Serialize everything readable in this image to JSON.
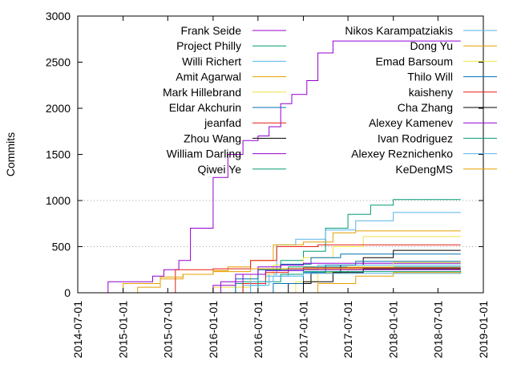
{
  "chart_data": {
    "type": "line",
    "title": "",
    "xlabel": "",
    "ylabel": "Commits",
    "xlim": [
      "2014-07-01",
      "2019-01-01"
    ],
    "ylim": [
      0,
      3000
    ],
    "x_ticks": [
      "2014-07-01",
      "2015-01-01",
      "2015-07-01",
      "2016-01-01",
      "2016-07-01",
      "2017-01-01",
      "2017-07-01",
      "2018-01-01",
      "2018-07-01",
      "2019-01-01"
    ],
    "y_ticks": [
      0,
      500,
      1000,
      1500,
      2000,
      2500,
      3000
    ],
    "grid": "horizontal dotted at 500 and 1000",
    "legend_placement": "top, two columns",
    "series": [
      {
        "name": "Frank Seide",
        "color": "#9400d3",
        "points": [
          [
            "2014-10-15",
            0
          ],
          [
            "2014-11-01",
            120
          ],
          [
            "2015-04-01",
            120
          ],
          [
            "2015-05-01",
            180
          ],
          [
            "2015-06-15",
            250
          ],
          [
            "2015-08-15",
            350
          ],
          [
            "2015-10-01",
            700
          ],
          [
            "2016-01-01",
            1250
          ],
          [
            "2016-03-01",
            1500
          ],
          [
            "2016-05-01",
            1650
          ],
          [
            "2016-07-01",
            1700
          ],
          [
            "2016-08-15",
            1800
          ],
          [
            "2016-10-01",
            2050
          ],
          [
            "2016-11-15",
            2150
          ],
          [
            "2017-01-15",
            2300
          ],
          [
            "2017-03-01",
            2600
          ],
          [
            "2017-05-01",
            2730
          ],
          [
            "2018-10-01",
            2730
          ]
        ]
      },
      {
        "name": "Project Philly",
        "color": "#009e73",
        "points": [
          [
            "2016-01-01",
            0
          ],
          [
            "2016-04-01",
            100
          ],
          [
            "2016-07-01",
            250
          ],
          [
            "2016-10-01",
            350
          ],
          [
            "2017-01-01",
            450
          ],
          [
            "2017-04-01",
            700
          ],
          [
            "2017-07-01",
            850
          ],
          [
            "2017-10-01",
            950
          ],
          [
            "2018-01-01",
            1010
          ],
          [
            "2018-10-01",
            1010
          ]
        ]
      },
      {
        "name": "Willi Richert",
        "color": "#56b4e9",
        "points": [
          [
            "2016-03-01",
            0
          ],
          [
            "2016-06-01",
            80
          ],
          [
            "2016-08-15",
            200
          ],
          [
            "2016-09-15",
            520
          ],
          [
            "2016-12-01",
            580
          ],
          [
            "2017-04-01",
            680
          ],
          [
            "2017-08-01",
            780
          ],
          [
            "2018-01-01",
            870
          ],
          [
            "2018-10-01",
            870
          ]
        ]
      },
      {
        "name": "Amit Agarwal",
        "color": "#e69f00",
        "points": [
          [
            "2014-12-01",
            0
          ],
          [
            "2015-03-01",
            60
          ],
          [
            "2015-06-01",
            150
          ],
          [
            "2015-09-01",
            200
          ],
          [
            "2016-01-01",
            240
          ],
          [
            "2016-03-01",
            280
          ],
          [
            "2016-06-01",
            350
          ],
          [
            "2016-09-01",
            520
          ],
          [
            "2017-01-01",
            550
          ],
          [
            "2017-05-01",
            650
          ],
          [
            "2017-08-01",
            670
          ],
          [
            "2018-10-01",
            670
          ]
        ]
      },
      {
        "name": "Mark Hillebrand",
        "color": "#f0e442",
        "points": [
          [
            "2015-07-01",
            0
          ],
          [
            "2016-01-01",
            60
          ],
          [
            "2016-06-01",
            200
          ],
          [
            "2016-09-01",
            300
          ],
          [
            "2017-01-01",
            380
          ],
          [
            "2017-05-01",
            500
          ],
          [
            "2017-09-01",
            610
          ],
          [
            "2018-10-01",
            610
          ]
        ]
      },
      {
        "name": "Eldar Akchurin",
        "color": "#0072b2",
        "points": [
          [
            "2016-01-01",
            0
          ],
          [
            "2016-04-01",
            150
          ],
          [
            "2016-07-01",
            250
          ],
          [
            "2016-10-01",
            310
          ],
          [
            "2017-02-01",
            380
          ],
          [
            "2017-06-01",
            420
          ],
          [
            "2018-10-01",
            420
          ]
        ]
      },
      {
        "name": "jeanfad",
        "color": "#e51e10",
        "points": [
          [
            "2015-06-01",
            0
          ],
          [
            "2015-08-01",
            250
          ],
          [
            "2016-01-01",
            260
          ],
          [
            "2016-06-01",
            350
          ],
          [
            "2016-09-15",
            500
          ],
          [
            "2017-03-01",
            520
          ],
          [
            "2018-10-01",
            520
          ]
        ]
      },
      {
        "name": "Zhou Wang",
        "color": "#000000",
        "points": [
          [
            "2016-08-01",
            0
          ],
          [
            "2016-11-01",
            100
          ],
          [
            "2017-02-01",
            220
          ],
          [
            "2017-06-01",
            300
          ],
          [
            "2017-09-01",
            380
          ],
          [
            "2018-01-01",
            460
          ],
          [
            "2018-10-01",
            460
          ]
        ]
      },
      {
        "name": "William Darling",
        "color": "#9400d3",
        "points": [
          [
            "2015-08-01",
            0
          ],
          [
            "2016-01-01",
            80
          ],
          [
            "2016-04-01",
            200
          ],
          [
            "2016-07-01",
            280
          ],
          [
            "2016-10-01",
            300
          ],
          [
            "2017-01-01",
            320
          ],
          [
            "2018-10-01",
            320
          ]
        ]
      },
      {
        "name": "Qiwei Ye",
        "color": "#009e73",
        "points": [
          [
            "2016-02-01",
            0
          ],
          [
            "2016-05-01",
            120
          ],
          [
            "2016-08-01",
            250
          ],
          [
            "2016-11-01",
            280
          ],
          [
            "2018-10-01",
            280
          ]
        ]
      },
      {
        "name": "Nikos Karampatziakis",
        "color": "#56b4e9",
        "points": [
          [
            "2016-02-01",
            0
          ],
          [
            "2016-05-01",
            80
          ],
          [
            "2016-08-01",
            180
          ],
          [
            "2016-11-01",
            250
          ],
          [
            "2017-03-01",
            300
          ],
          [
            "2018-10-01",
            300
          ]
        ]
      },
      {
        "name": "Dong Yu",
        "color": "#e69f00",
        "points": [
          [
            "2014-09-01",
            0
          ],
          [
            "2015-01-01",
            100
          ],
          [
            "2015-06-01",
            170
          ],
          [
            "2015-09-01",
            200
          ],
          [
            "2016-01-01",
            230
          ],
          [
            "2016-06-01",
            260
          ],
          [
            "2018-10-01",
            260
          ]
        ]
      },
      {
        "name": "Emad Barsoum",
        "color": "#f0e442",
        "points": [
          [
            "2016-09-01",
            0
          ],
          [
            "2016-12-01",
            120
          ],
          [
            "2017-03-01",
            220
          ],
          [
            "2017-07-01",
            280
          ],
          [
            "2018-01-01",
            330
          ],
          [
            "2018-10-01",
            330
          ]
        ]
      },
      {
        "name": "Thilo Will",
        "color": "#0072b2",
        "points": [
          [
            "2016-06-01",
            0
          ],
          [
            "2016-09-01",
            100
          ],
          [
            "2017-01-01",
            220
          ],
          [
            "2017-04-01",
            300
          ],
          [
            "2017-08-01",
            340
          ],
          [
            "2018-10-01",
            340
          ]
        ]
      },
      {
        "name": "kaisheny",
        "color": "#e51e10",
        "points": [
          [
            "2016-01-01",
            0
          ],
          [
            "2016-05-01",
            100
          ],
          [
            "2016-08-01",
            220
          ],
          [
            "2016-11-01",
            260
          ],
          [
            "2017-01-01",
            270
          ],
          [
            "2018-10-01",
            270
          ]
        ]
      },
      {
        "name": "Cha Zhang",
        "color": "#000000",
        "points": [
          [
            "2016-09-01",
            0
          ],
          [
            "2017-01-01",
            120
          ],
          [
            "2017-05-01",
            220
          ],
          [
            "2017-09-01",
            260
          ],
          [
            "2018-10-01",
            260
          ]
        ]
      },
      {
        "name": "Alexey Kamenev",
        "color": "#9400d3",
        "points": [
          [
            "2015-11-01",
            0
          ],
          [
            "2016-02-01",
            120
          ],
          [
            "2016-05-01",
            200
          ],
          [
            "2016-08-01",
            240
          ],
          [
            "2017-01-01",
            250
          ],
          [
            "2018-10-01",
            250
          ]
        ]
      },
      {
        "name": "Ivan Rodriguez",
        "color": "#009e73",
        "points": [
          [
            "2016-04-01",
            0
          ],
          [
            "2016-07-01",
            120
          ],
          [
            "2016-10-01",
            200
          ],
          [
            "2017-01-01",
            230
          ],
          [
            "2018-10-01",
            240
          ]
        ]
      },
      {
        "name": "Alexey Reznichenko",
        "color": "#56b4e9",
        "points": [
          [
            "2016-03-01",
            0
          ],
          [
            "2016-06-01",
            120
          ],
          [
            "2016-09-01",
            180
          ],
          [
            "2017-01-01",
            210
          ],
          [
            "2018-10-01",
            220
          ]
        ]
      },
      {
        "name": "KeDengMS",
        "color": "#e69f00",
        "points": [
          [
            "2016-10-01",
            0
          ],
          [
            "2017-03-01",
            100
          ],
          [
            "2017-08-01",
            180
          ],
          [
            "2018-01-01",
            220
          ],
          [
            "2018-10-01",
            230
          ]
        ]
      }
    ]
  }
}
